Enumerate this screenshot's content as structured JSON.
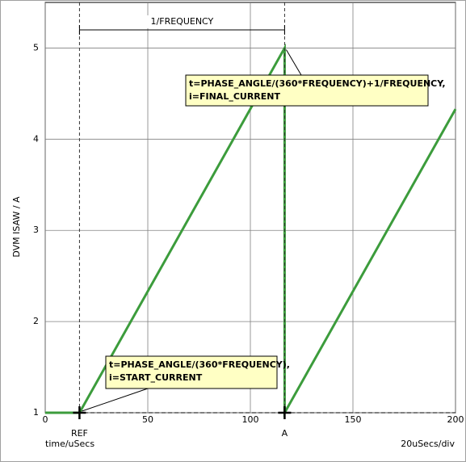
{
  "chart_data": {
    "type": "line",
    "y_label": "DVM ISAW / A",
    "x_label": "time/uSecs",
    "x_scale_label": "20uSecs/div",
    "x": [
      0,
      16.7,
      116.7,
      116.7,
      200
    ],
    "series": [
      {
        "color": "#3c9c3c",
        "values": [
          1,
          1,
          5,
          1,
          4.33
        ]
      }
    ],
    "xlim": [
      0,
      200
    ],
    "xticks": [
      0,
      50,
      100,
      150,
      200
    ],
    "ylim": [
      1,
      5.5
    ],
    "yticks": [
      1,
      2,
      3,
      4,
      5
    ],
    "grid": true,
    "cursors": [
      {
        "label": "REF",
        "x": 16.7
      },
      {
        "label": "A",
        "x": 116.7
      }
    ],
    "span_label": "1/FREQUENCY",
    "annotations": [
      {
        "lines": [
          "t=PHASE_ANGLE/(360*FREQUENCY)+1/FREQUENCY,",
          "i=FINAL_CURRENT"
        ]
      },
      {
        "lines": [
          "t=PHASE_ANGLE/(360*FREQUENCY),",
          "i=START_CURRENT"
        ]
      }
    ]
  }
}
